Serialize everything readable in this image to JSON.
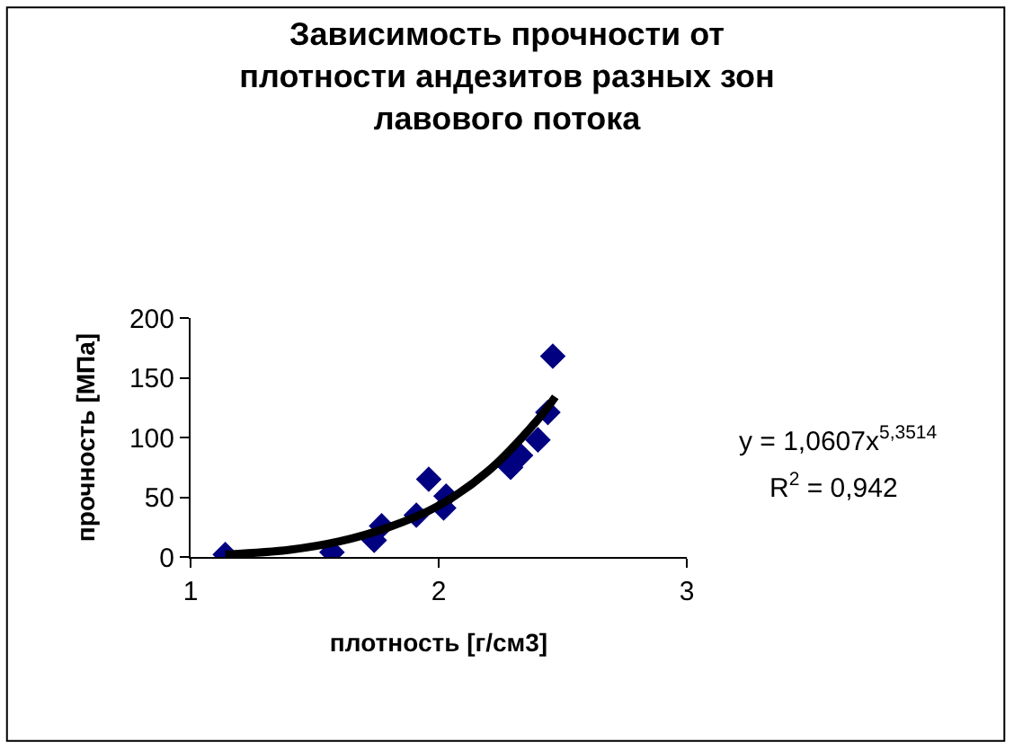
{
  "chart_data": {
    "type": "scatter",
    "title": "Зависимость прочности от плотности андезитов разных зон лавового потока",
    "xlabel": "плотность [г/см3]",
    "ylabel": "прочность [МПа]",
    "legend": false,
    "xlim": [
      1,
      3
    ],
    "xticks": [
      1,
      2,
      3
    ],
    "ylim": [
      0,
      200
    ],
    "yticks": [
      0,
      50,
      100,
      150,
      200
    ],
    "annotations": [
      "y = 1,0607x$^{5,3514}$",
      "R$^{2}$ = 0,942"
    ],
    "series": [
      {
        "marker": "diamond",
        "color": "#000080",
        "x": [
          1.14,
          1.57,
          1.74,
          1.77,
          1.91,
          1.96,
          2.02,
          2.03,
          2.29,
          2.33,
          2.4,
          2.44,
          2.46
        ],
        "values": [
          2,
          4,
          14,
          26,
          35,
          65,
          41,
          51,
          75,
          85,
          98,
          121,
          168
        ]
      },
      {
        "type": "line",
        "marker": "none",
        "color": "#000000",
        "x": [
          1.14,
          1.4,
          1.6,
          1.8,
          2.0,
          2.2,
          2.4,
          2.47
        ],
        "values": [
          2,
          6,
          13,
          25,
          43,
          72,
          115,
          134
        ]
      }
    ]
  }
}
